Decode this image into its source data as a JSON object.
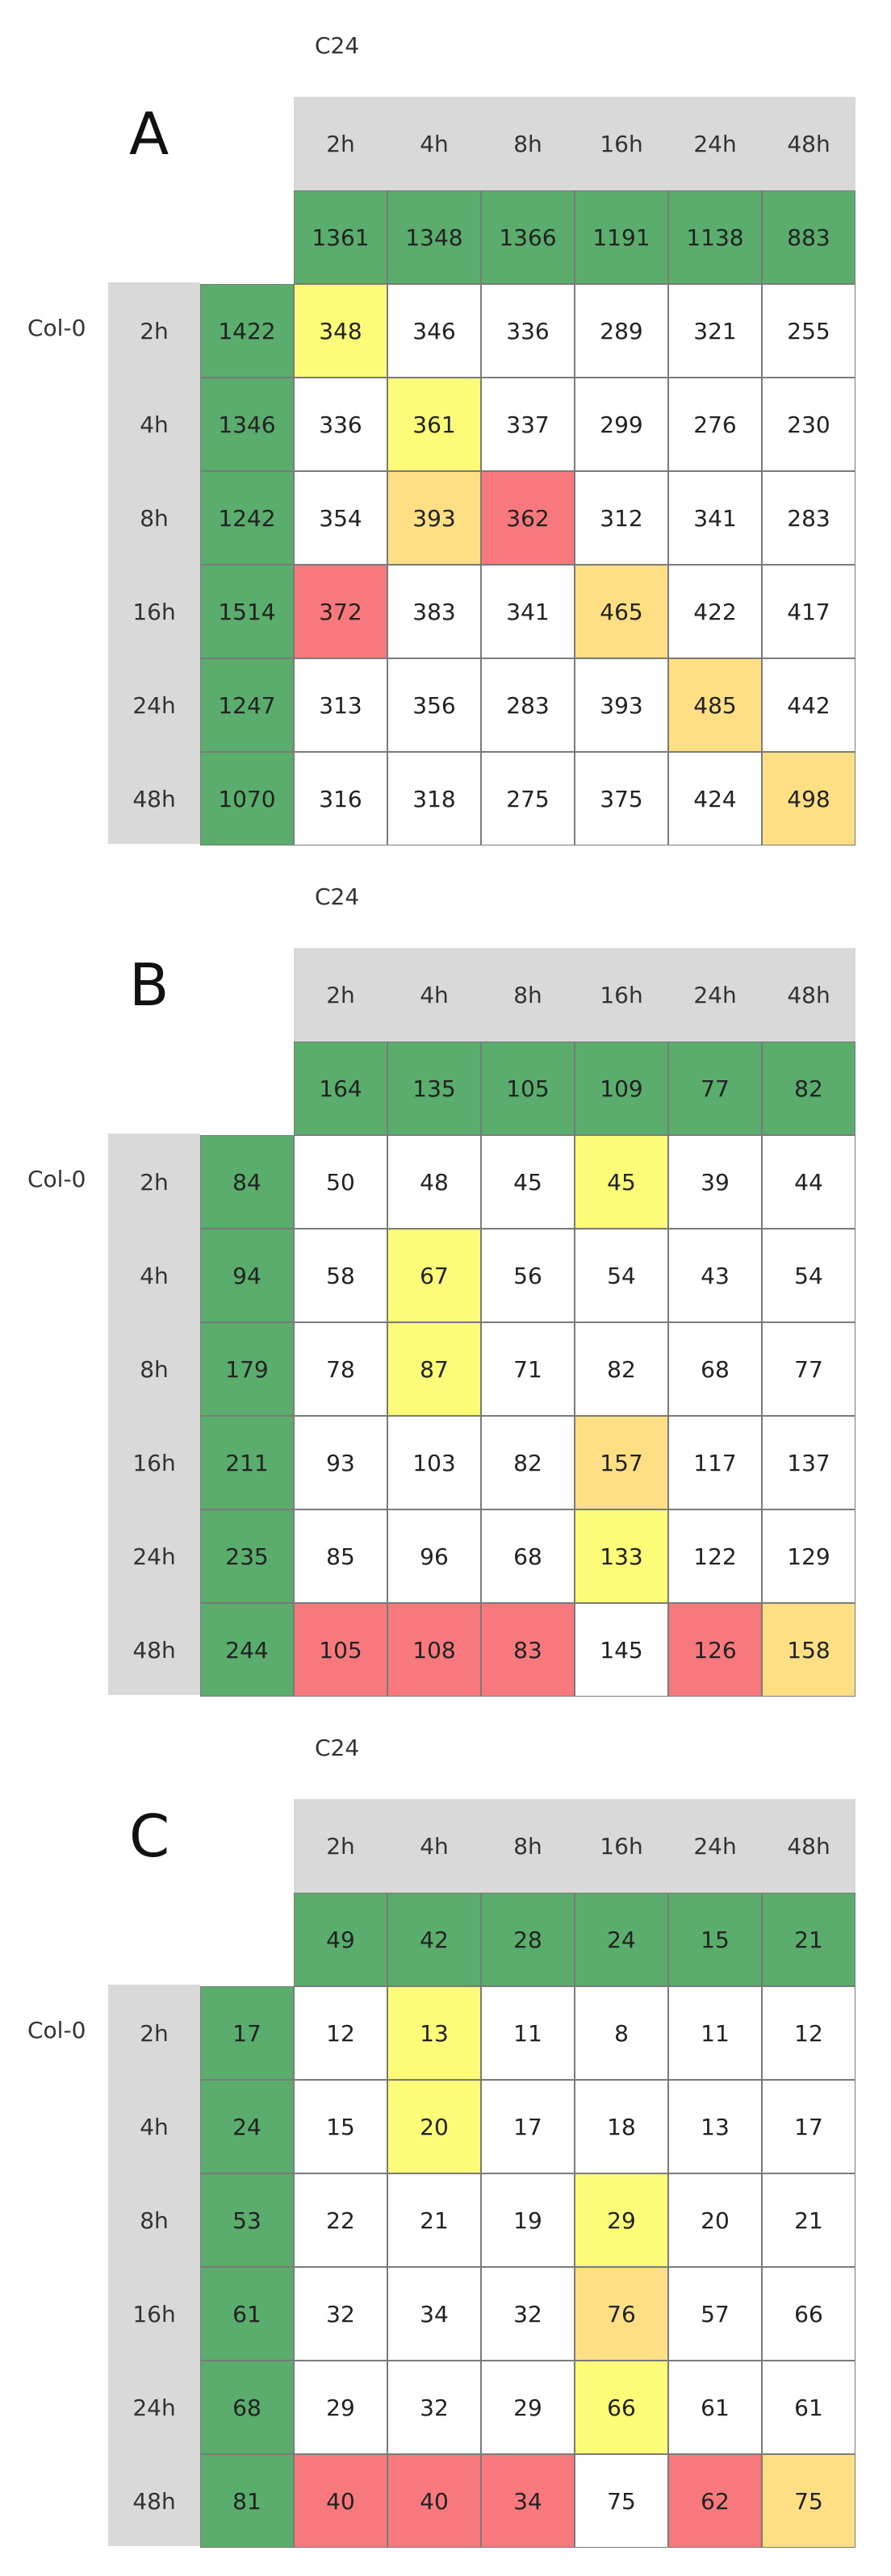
{
  "palette": {
    "green": "#5aad6c",
    "yellow": "#fcfc78",
    "orange": "#fedf84",
    "red": "#f8797d",
    "white": "#ffffff",
    "header_grey": "#d9d9d9"
  },
  "panels": [
    {
      "letter": "A",
      "col_group": "C24",
      "row_group": "Col-0",
      "col_headers": [
        "2h",
        "4h",
        "8h",
        "16h",
        "24h",
        "48h"
      ],
      "col_totals": [
        "1361",
        "1348",
        "1366",
        "1191",
        "1138",
        "883"
      ],
      "rows": [
        {
          "label": "2h",
          "total": "1422",
          "values": [
            "348",
            "346",
            "336",
            "289",
            "321",
            "255"
          ],
          "colors": [
            "yellow",
            "white",
            "white",
            "white",
            "white",
            "white"
          ]
        },
        {
          "label": "4h",
          "total": "1346",
          "values": [
            "336",
            "361",
            "337",
            "299",
            "276",
            "230"
          ],
          "colors": [
            "white",
            "yellow",
            "white",
            "white",
            "white",
            "white"
          ]
        },
        {
          "label": "8h",
          "total": "1242",
          "values": [
            "354",
            "393",
            "362",
            "312",
            "341",
            "283"
          ],
          "colors": [
            "white",
            "orange",
            "red",
            "white",
            "white",
            "white"
          ]
        },
        {
          "label": "16h",
          "total": "1514",
          "values": [
            "372",
            "383",
            "341",
            "465",
            "422",
            "417"
          ],
          "colors": [
            "red",
            "white",
            "white",
            "orange",
            "white",
            "white"
          ]
        },
        {
          "label": "24h",
          "total": "1247",
          "values": [
            "313",
            "356",
            "283",
            "393",
            "485",
            "442"
          ],
          "colors": [
            "white",
            "white",
            "white",
            "white",
            "orange",
            "white"
          ]
        },
        {
          "label": "48h",
          "total": "1070",
          "values": [
            "316",
            "318",
            "275",
            "375",
            "424",
            "498"
          ],
          "colors": [
            "white",
            "white",
            "white",
            "white",
            "white",
            "orange"
          ]
        }
      ]
    },
    {
      "letter": "B",
      "col_group": "C24",
      "row_group": "Col-0",
      "col_headers": [
        "2h",
        "4h",
        "8h",
        "16h",
        "24h",
        "48h"
      ],
      "col_totals": [
        "164",
        "135",
        "105",
        "109",
        "77",
        "82"
      ],
      "rows": [
        {
          "label": "2h",
          "total": "84",
          "values": [
            "50",
            "48",
            "45",
            "45",
            "39",
            "44"
          ],
          "colors": [
            "white",
            "white",
            "white",
            "yellow",
            "white",
            "white"
          ]
        },
        {
          "label": "4h",
          "total": "94",
          "values": [
            "58",
            "67",
            "56",
            "54",
            "43",
            "54"
          ],
          "colors": [
            "white",
            "yellow",
            "white",
            "white",
            "white",
            "white"
          ]
        },
        {
          "label": "8h",
          "total": "179",
          "values": [
            "78",
            "87",
            "71",
            "82",
            "68",
            "77"
          ],
          "colors": [
            "white",
            "yellow",
            "white",
            "white",
            "white",
            "white"
          ]
        },
        {
          "label": "16h",
          "total": "211",
          "values": [
            "93",
            "103",
            "82",
            "157",
            "117",
            "137"
          ],
          "colors": [
            "white",
            "white",
            "white",
            "orange",
            "white",
            "white"
          ]
        },
        {
          "label": "24h",
          "total": "235",
          "values": [
            "85",
            "96",
            "68",
            "133",
            "122",
            "129"
          ],
          "colors": [
            "white",
            "white",
            "white",
            "yellow",
            "white",
            "white"
          ]
        },
        {
          "label": "48h",
          "total": "244",
          "values": [
            "105",
            "108",
            "83",
            "145",
            "126",
            "158"
          ],
          "colors": [
            "red",
            "red",
            "red",
            "white",
            "red",
            "orange"
          ]
        }
      ]
    },
    {
      "letter": "C",
      "col_group": "C24",
      "row_group": "Col-0",
      "col_headers": [
        "2h",
        "4h",
        "8h",
        "16h",
        "24h",
        "48h"
      ],
      "col_totals": [
        "49",
        "42",
        "28",
        "24",
        "15",
        "21"
      ],
      "rows": [
        {
          "label": "2h",
          "total": "17",
          "values": [
            "12",
            "13",
            "11",
            "8",
            "11",
            "12"
          ],
          "colors": [
            "white",
            "yellow",
            "white",
            "white",
            "white",
            "white"
          ]
        },
        {
          "label": "4h",
          "total": "24",
          "values": [
            "15",
            "20",
            "17",
            "18",
            "13",
            "17"
          ],
          "colors": [
            "white",
            "yellow",
            "white",
            "white",
            "white",
            "white"
          ]
        },
        {
          "label": "8h",
          "total": "53",
          "values": [
            "22",
            "21",
            "19",
            "29",
            "20",
            "21"
          ],
          "colors": [
            "white",
            "white",
            "white",
            "yellow",
            "white",
            "white"
          ]
        },
        {
          "label": "16h",
          "total": "61",
          "values": [
            "32",
            "34",
            "32",
            "76",
            "57",
            "66"
          ],
          "colors": [
            "white",
            "white",
            "white",
            "orange",
            "white",
            "white"
          ]
        },
        {
          "label": "24h",
          "total": "68",
          "values": [
            "29",
            "32",
            "29",
            "66",
            "61",
            "61"
          ],
          "colors": [
            "white",
            "white",
            "white",
            "yellow",
            "white",
            "white"
          ]
        },
        {
          "label": "48h",
          "total": "81",
          "values": [
            "40",
            "40",
            "34",
            "75",
            "62",
            "75"
          ],
          "colors": [
            "red",
            "red",
            "red",
            "white",
            "red",
            "orange"
          ]
        }
      ]
    }
  ]
}
